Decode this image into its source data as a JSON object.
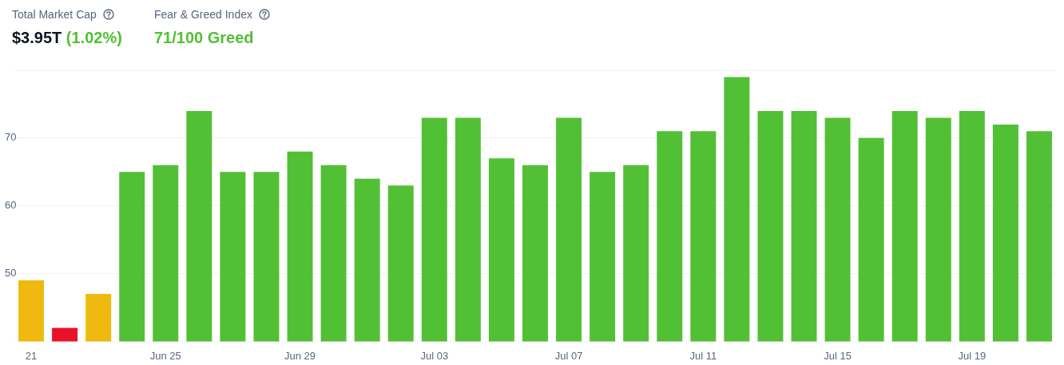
{
  "chart_data": {
    "type": "bar",
    "annotations": [
      "Total Market Cap",
      "$3.95T",
      "(1.02%)",
      "Fear & Greed Index",
      "71/100 Greed"
    ],
    "categories": [
      "21",
      null,
      null,
      null,
      "Jun 25",
      null,
      null,
      null,
      "Jun 29",
      null,
      null,
      null,
      "Jul 03",
      null,
      null,
      null,
      "Jul 07",
      null,
      null,
      null,
      "Jul 11",
      null,
      null,
      null,
      "Jul 15",
      null,
      null,
      null,
      "Jul 19",
      null,
      null
    ],
    "values": [
      49,
      42,
      47,
      65,
      66,
      74,
      65,
      65,
      68,
      66,
      64,
      63,
      73,
      73,
      67,
      66,
      73,
      65,
      66,
      71,
      71,
      79,
      74,
      74,
      73,
      70,
      74,
      73,
      74,
      72,
      71
    ],
    "colors": [
      "#f0b90f",
      "#e8122a",
      "#f0b90f",
      "#52c035",
      "#52c035",
      "#52c035",
      "#52c035",
      "#52c035",
      "#52c035",
      "#52c035",
      "#52c035",
      "#52c035",
      "#52c035",
      "#52c035",
      "#52c035",
      "#52c035",
      "#52c035",
      "#52c035",
      "#52c035",
      "#52c035",
      "#52c035",
      "#52c035",
      "#52c035",
      "#52c035",
      "#52c035",
      "#52c035",
      "#52c035",
      "#52c035",
      "#52c035",
      "#52c035",
      "#52c035"
    ],
    "ylim": [
      40,
      80
    ],
    "yticks": [
      {
        "value": 40,
        "label": null
      },
      50,
      60,
      70,
      {
        "value": 80,
        "label": null
      }
    ],
    "grid": "y",
    "legend": false
  }
}
